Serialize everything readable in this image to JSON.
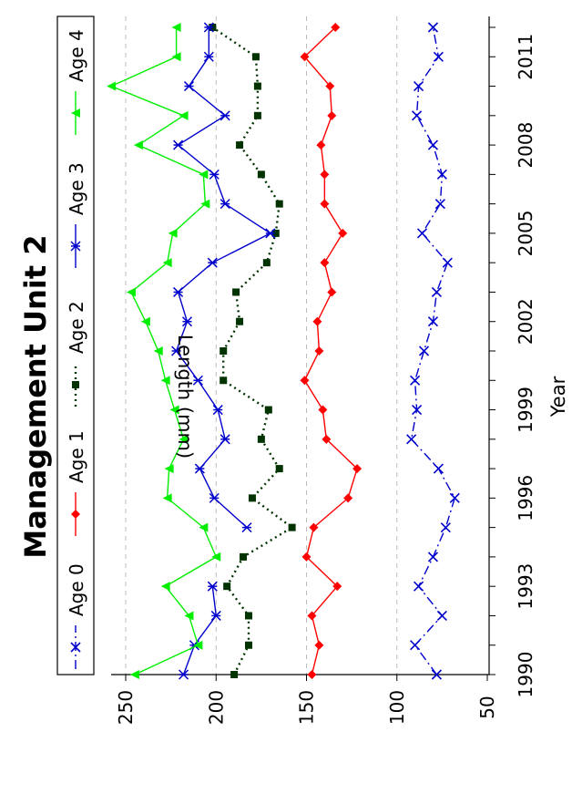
{
  "chart_data": {
    "type": "line",
    "title": "Management Unit 2",
    "xlabel": "Year",
    "ylabel": "Length (mm)",
    "x": [
      1990,
      1991,
      1992,
      1993,
      1994,
      1995,
      1996,
      1997,
      1998,
      1999,
      2000,
      2001,
      2002,
      2003,
      2004,
      2005,
      2006,
      2007,
      2008,
      2009,
      2010,
      2011,
      2012
    ],
    "xticks": [
      "1990",
      "1993",
      "1996",
      "1999",
      "2002",
      "2005",
      "2008",
      "2011"
    ],
    "xlim": [
      1990,
      2012
    ],
    "yticks": [
      "50",
      "100",
      "150",
      "200",
      "250"
    ],
    "ylim": [
      50,
      255
    ],
    "grid_y": [
      100,
      150,
      200,
      250
    ],
    "legend_position": "top",
    "series": [
      {
        "name": "Age 0",
        "color": "#0000cc",
        "marker": "x",
        "line": "dashdot",
        "values": [
          78,
          90,
          75,
          88,
          80,
          73,
          68,
          77,
          92,
          89,
          90,
          85,
          80,
          78,
          72,
          86,
          76,
          75,
          80,
          89,
          88,
          77,
          80
        ]
      },
      {
        "name": "Age 1",
        "color": "#ff0000",
        "marker": "diamond",
        "line": "solid",
        "values": [
          147,
          143,
          147,
          133,
          150,
          146,
          127,
          122,
          139,
          141,
          151,
          143,
          144,
          136,
          140,
          130,
          140,
          140,
          142,
          136,
          137,
          151,
          134
        ]
      },
      {
        "name": "Age 2",
        "color": "#003300",
        "marker": "square",
        "line": "dotted",
        "values": [
          190,
          182,
          182,
          194,
          185,
          158,
          180,
          165,
          175,
          171,
          196,
          196,
          187,
          189,
          172,
          167,
          165,
          175,
          187,
          177,
          177,
          178,
          202
        ]
      },
      {
        "name": "Age 3",
        "color": "#0000cc",
        "marker": "star",
        "line": "solid",
        "values": [
          218,
          212,
          200,
          202,
          null,
          183,
          201,
          209,
          195,
          199,
          210,
          222,
          216,
          221,
          202,
          170,
          195,
          201,
          221,
          195,
          215,
          204,
          204
        ]
      },
      {
        "name": "Age 4",
        "color": "#00ee00",
        "marker": "triangle",
        "line": "solid",
        "values": [
          245,
          210,
          215,
          228,
          200,
          207,
          227,
          226,
          218,
          223,
          228,
          232,
          239,
          247,
          227,
          224,
          206,
          207,
          243,
          218,
          258,
          222,
          222
        ]
      }
    ]
  }
}
